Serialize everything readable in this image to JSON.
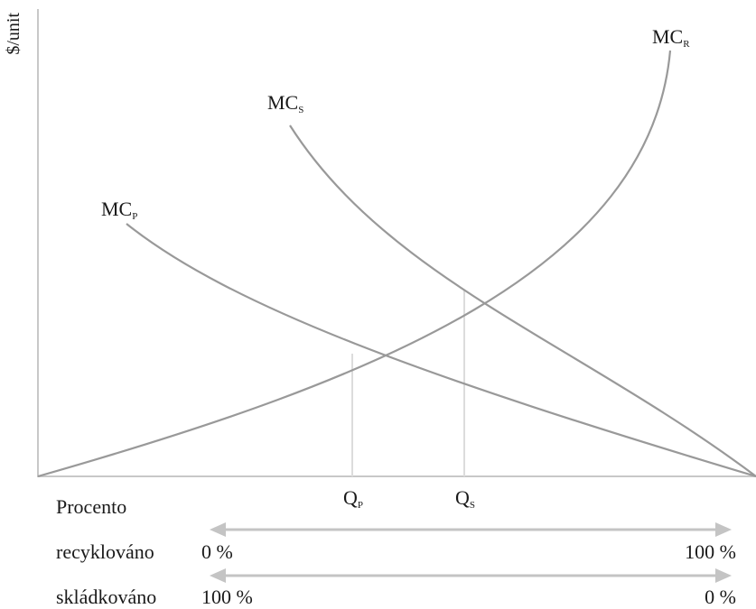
{
  "y_axis_label": "$/unit",
  "curves": {
    "mc_r": {
      "main": "MC",
      "sub": "R"
    },
    "mc_s": {
      "main": "MC",
      "sub": "S"
    },
    "mc_p": {
      "main": "MC",
      "sub": "P"
    }
  },
  "quantities": {
    "q_p": {
      "main": "Q",
      "sub": "P"
    },
    "q_s": {
      "main": "Q",
      "sub": "S"
    }
  },
  "bottom_rows": {
    "heading": "Procento",
    "recycled": {
      "label": "recyklováno",
      "left": "0 %",
      "right": "100 %"
    },
    "landfilled": {
      "label": "skládkováno",
      "left": "100 %",
      "right": "0 %"
    }
  },
  "colors": {
    "curve": "#999999",
    "axis": "#c8c8c8",
    "guide": "#dcdcdc",
    "arrow": "#c4c4c4",
    "text": "#1a1a1a"
  }
}
